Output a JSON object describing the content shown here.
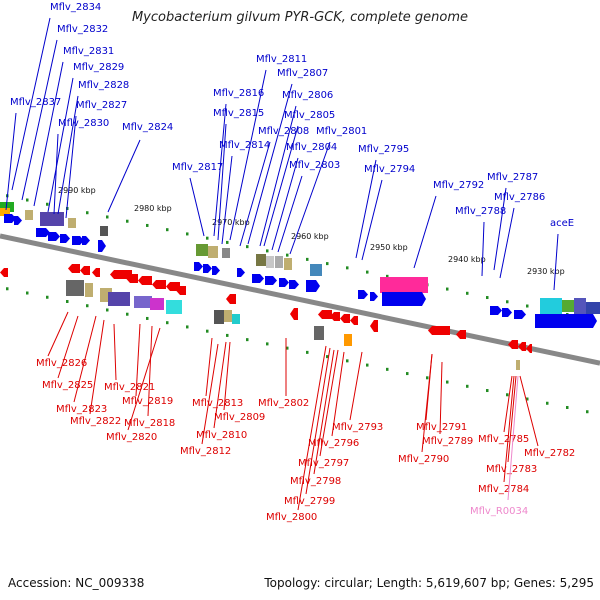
{
  "title": "Mycobacterium gilvum PYR-GCK, complete genome",
  "footer": {
    "accession": "Accession: NC_009338",
    "summary": "Topology: circular; Length: 5,619,607 bp; Genes: 5,295"
  },
  "colors": {
    "forward_label": "#0000cc",
    "reverse_label": "#dd0000",
    "rna_label": "#ee88cc",
    "forward_arrow": "#0000ee",
    "reverse_arrow": "#ee0000",
    "backbone": "#888888",
    "tick": "#228b22"
  },
  "kbp_markers": [
    "2990 kbp",
    "2980 kbp",
    "2970 kbp",
    "2960 kbp",
    "2950 kbp",
    "2940 kbp",
    "2930 kbp"
  ],
  "top_labels": [
    "Mflv_2834",
    "Mflv_2832",
    "Mflv_2831",
    "Mflv_2829",
    "Mflv_2828",
    "Mflv_2837",
    "Mflv_2827",
    "Mflv_2830",
    "Mflv_2824",
    "Mflv_2811",
    "Mflv_2807",
    "Mflv_2816",
    "Mflv_2806",
    "Mflv_2815",
    "Mflv_2805",
    "Mflv_2808",
    "Mflv_2801",
    "Mflv_2814",
    "Mflv_2804",
    "Mflv_2795",
    "Mflv_2817",
    "Mflv_2803",
    "Mflv_2794",
    "Mflv_2792",
    "Mflv_2787",
    "Mflv_2786",
    "Mflv_2788",
    "aceE"
  ],
  "bottom_labels": [
    "Mflv_2826",
    "Mflv_2825",
    "Mflv_2821",
    "Mflv_2823",
    "Mflv_2819",
    "Mflv_2822",
    "Mflv_2818",
    "Mflv_2820",
    "Mflv_2813",
    "Mflv_2809",
    "Mflv_2810",
    "Mflv_2812",
    "Mflv_2802",
    "Mflv_2793",
    "Mflv_2796",
    "Mflv_2797",
    "Mflv_2798",
    "Mflv_2799",
    "Mflv_2800",
    "Mflv_2791",
    "Mflv_2789",
    "Mflv_2790",
    "Mflv_2785",
    "Mflv_2782",
    "Mflv_2783",
    "Mflv_2784"
  ],
  "rna_labels": [
    "Mflv_R0034"
  ]
}
